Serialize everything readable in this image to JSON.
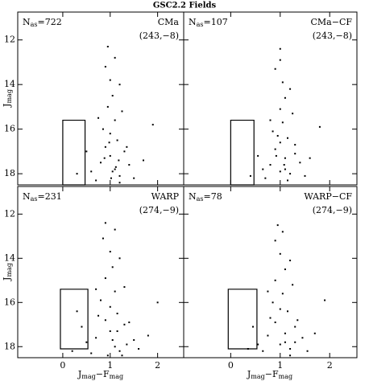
{
  "title": "GSC2.2 Fields",
  "chart_data": [
    {
      "type": "scatter",
      "count_main": "N",
      "count_sub": "as",
      "count_value": "=722",
      "field": "CMa",
      "coords": "(243,−8)",
      "y_label_main": "J",
      "y_label_sub": "mag",
      "x_label_main": "J",
      "x_label_sub": "mag",
      "x_label_mid": "−F",
      "x_label_sub2": "mag",
      "xlim": [
        -0.95,
        2.55
      ],
      "ylim": [
        10.75,
        18.5
      ],
      "xticks": [
        0,
        1,
        2
      ],
      "yticks": [
        12,
        14,
        16,
        18
      ],
      "xtick_labels": false,
      "ytick_labels": true,
      "color": "#000000",
      "selection_box": {
        "x": [
          0,
          0.47
        ],
        "y": [
          15.6,
          18.5
        ]
      },
      "x": [
        1.1,
        1.0,
        0.9,
        1.2,
        0.8,
        1.3,
        1.0,
        1.1,
        0.95,
        1.4,
        0.7,
        1.05,
        1.15,
        0.85,
        1.25,
        0.6,
        1.5,
        1.0,
        0.9,
        1.2,
        0.75,
        1.1,
        1.35,
        0.5,
        1.7,
        0.3,
        1.9,
        0.95,
        1.05,
        1.2,
        0.88,
        1.12,
        1.02,
        0.98,
        1.18
      ],
      "values": [
        17.8,
        17.2,
        16.8,
        18.1,
        17.5,
        17.0,
        16.2,
        15.6,
        15.0,
        17.6,
        18.3,
        14.5,
        16.5,
        16.0,
        15.2,
        17.9,
        18.2,
        13.8,
        13.2,
        14.0,
        15.5,
        12.8,
        16.8,
        17.0,
        17.4,
        18.0,
        15.8,
        12.3,
        17.9,
        18.4,
        17.3,
        17.7,
        18.2,
        16.6,
        17.4
      ]
    },
    {
      "type": "scatter",
      "count_main": "N",
      "count_sub": "as",
      "count_value": "=107",
      "field": "CMa−CF",
      "coords": "(243,−8)",
      "xlim": [
        -0.95,
        2.55
      ],
      "ylim": [
        10.75,
        18.5
      ],
      "xticks": [
        0,
        1,
        2
      ],
      "yticks": [
        12,
        14,
        16,
        18
      ],
      "xtick_labels": false,
      "ytick_labels": false,
      "color": "#000000",
      "selection_box": {
        "x": [
          0,
          0.47
        ],
        "y": [
          15.6,
          18.5
        ]
      },
      "x": [
        1.0,
        1.1,
        0.9,
        1.2,
        0.8,
        1.3,
        0.95,
        1.05,
        1.0,
        1.4,
        0.7,
        1.1,
        1.15,
        0.85,
        1.25,
        0.65,
        1.5,
        1.05,
        0.9,
        1.2,
        0.8,
        1.0,
        1.3,
        0.55,
        1.6,
        0.4,
        1.8,
        1.0,
        1.1,
        1.15,
        0.92,
        1.08,
        1.0
      ],
      "values": [
        17.9,
        17.3,
        16.9,
        18.0,
        17.6,
        17.1,
        16.3,
        15.7,
        15.1,
        17.5,
        18.2,
        14.6,
        16.4,
        16.1,
        15.3,
        17.8,
        18.1,
        13.9,
        13.3,
        14.2,
        15.6,
        12.9,
        16.7,
        17.2,
        17.3,
        18.1,
        15.9,
        12.4,
        17.8,
        18.3,
        17.2,
        17.6,
        16.6
      ]
    },
    {
      "type": "scatter",
      "count_main": "N",
      "count_sub": "as",
      "count_value": "=231",
      "field": "WARP",
      "coords": "(274,−9)",
      "xlim": [
        -0.95,
        2.55
      ],
      "ylim": [
        10.75,
        18.5
      ],
      "xticks": [
        0,
        1,
        2
      ],
      "yticks": [
        12,
        14,
        16,
        18
      ],
      "xtick_labels": true,
      "ytick_labels": true,
      "color": "#000000",
      "selection_box": {
        "x": [
          -0.05,
          0.53
        ],
        "y": [
          15.4,
          18.1
        ]
      },
      "x": [
        1.1,
        1.0,
        0.9,
        1.2,
        0.7,
        1.3,
        1.0,
        1.1,
        0.9,
        1.5,
        0.6,
        1.05,
        1.15,
        0.8,
        1.3,
        0.5,
        1.6,
        1.0,
        0.85,
        1.2,
        0.7,
        1.1,
        1.4,
        0.4,
        1.8,
        0.2,
        2.0,
        0.9,
        1.05,
        1.25,
        0.75,
        1.35,
        0.95,
        1.15,
        0.3
      ],
      "values": [
        18.0,
        17.3,
        16.8,
        18.2,
        17.6,
        17.0,
        16.2,
        15.5,
        14.9,
        17.7,
        18.3,
        14.4,
        16.5,
        15.9,
        15.3,
        17.8,
        18.1,
        13.7,
        13.1,
        14.0,
        15.4,
        12.7,
        16.9,
        17.1,
        17.5,
        18.2,
        16.0,
        12.4,
        17.7,
        18.4,
        16.6,
        17.9,
        18.4,
        17.3,
        16.4
      ]
    },
    {
      "type": "scatter",
      "count_main": "N",
      "count_sub": "as",
      "count_value": "=78",
      "field": "WARP−CF",
      "coords": "(274,−9)",
      "xlim": [
        -0.95,
        2.55
      ],
      "ylim": [
        10.75,
        18.5
      ],
      "xticks": [
        0,
        1,
        2
      ],
      "yticks": [
        12,
        14,
        16,
        18
      ],
      "xtick_labels": true,
      "ytick_labels": false,
      "color": "#000000",
      "selection_box": {
        "x": [
          -0.05,
          0.53
        ],
        "y": [
          15.4,
          18.1
        ]
      },
      "x": [
        1.0,
        1.1,
        0.9,
        1.2,
        0.75,
        1.3,
        1.0,
        1.05,
        0.9,
        1.45,
        0.65,
        1.1,
        1.15,
        0.85,
        1.25,
        0.55,
        1.55,
        1.0,
        0.9,
        1.2,
        0.75,
        1.05,
        1.35,
        0.45,
        1.7,
        0.35,
        1.9,
        0.95,
        1.1,
        1.2,
        0.8,
        1.3
      ],
      "values": [
        17.9,
        17.4,
        16.9,
        18.1,
        17.5,
        17.1,
        16.3,
        15.6,
        15.0,
        17.6,
        18.2,
        14.5,
        16.4,
        16.0,
        15.2,
        17.9,
        18.2,
        13.8,
        13.2,
        14.1,
        15.5,
        12.8,
        16.8,
        17.1,
        17.4,
        18.1,
        15.9,
        12.5,
        17.8,
        18.4,
        16.7,
        17.8
      ]
    }
  ]
}
